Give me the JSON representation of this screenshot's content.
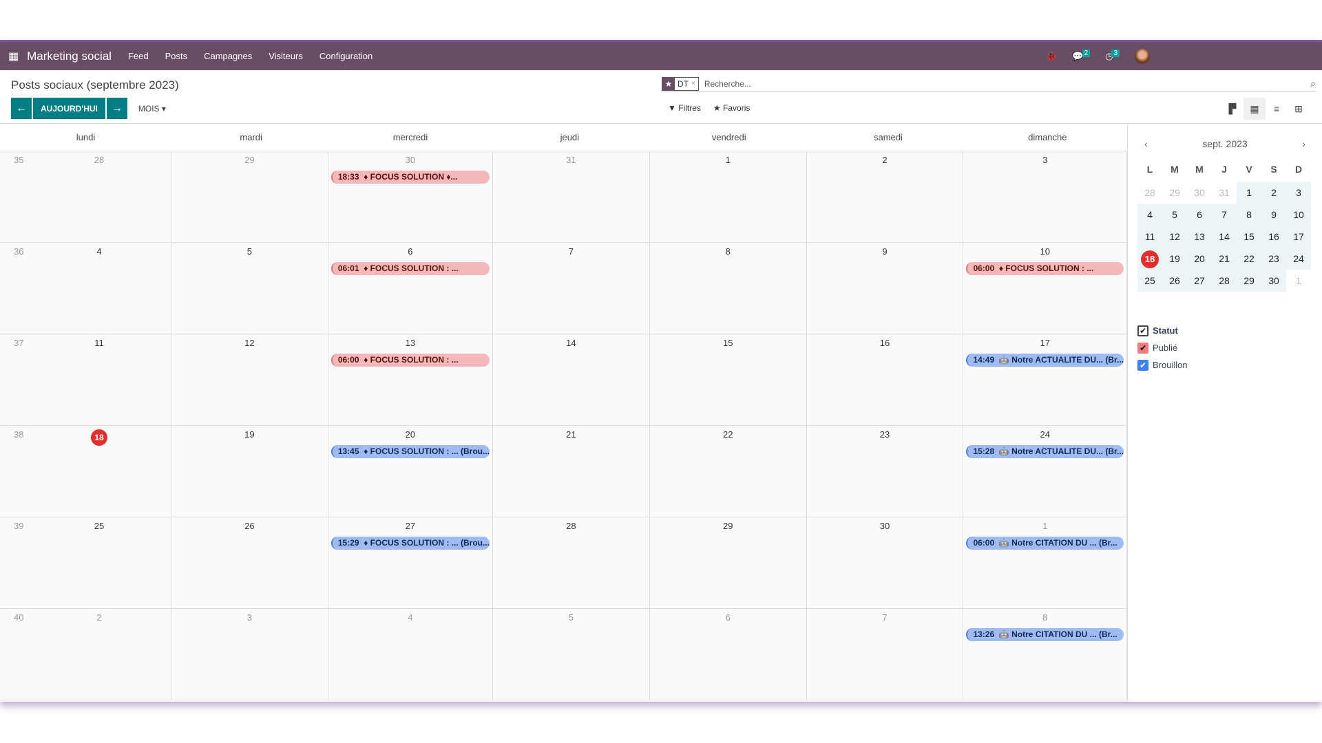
{
  "nav": {
    "app": "Marketing social",
    "menu": [
      "Feed",
      "Posts",
      "Campagnes",
      "Visiteurs",
      "Configuration"
    ],
    "messages_count": "2",
    "activities_count": "3"
  },
  "control": {
    "title": "Posts sociaux (septembre 2023)",
    "today": "AUJOURD'HUI",
    "scale": "MOIS",
    "facet": "DT",
    "search_placeholder": "Recherche...",
    "filters": "Filtres",
    "favorites": "Favoris"
  },
  "calendar": {
    "weekdays": [
      "lundi",
      "mardi",
      "mercredi",
      "jeudi",
      "vendredi",
      "samedi",
      "dimanche"
    ],
    "today": "18",
    "weeks": [
      {
        "num": "35",
        "days": [
          "28",
          "29",
          "30",
          "31",
          "1",
          "2",
          "3"
        ],
        "other": [
          0,
          1,
          2,
          3
        ]
      },
      {
        "num": "36",
        "days": [
          "4",
          "5",
          "6",
          "7",
          "8",
          "9",
          "10"
        ],
        "other": []
      },
      {
        "num": "37",
        "days": [
          "11",
          "12",
          "13",
          "14",
          "15",
          "16",
          "17"
        ],
        "other": []
      },
      {
        "num": "38",
        "days": [
          "18",
          "19",
          "20",
          "21",
          "22",
          "23",
          "24"
        ],
        "other": []
      },
      {
        "num": "39",
        "days": [
          "25",
          "26",
          "27",
          "28",
          "29",
          "30",
          "1"
        ],
        "other": [
          6
        ]
      },
      {
        "num": "40",
        "days": [
          "2",
          "3",
          "4",
          "5",
          "6",
          "7",
          "8"
        ],
        "other": [
          0,
          1,
          2,
          3,
          4,
          5,
          6
        ]
      }
    ],
    "events": [
      {
        "week": 0,
        "day": 2,
        "status": "pub",
        "time": "18:33",
        "icon": "♦",
        "text": "FOCUS SOLUTION ♦..."
      },
      {
        "week": 1,
        "day": 2,
        "status": "pub",
        "time": "06:01",
        "icon": "♦",
        "text": "FOCUS SOLUTION : ..."
      },
      {
        "week": 1,
        "day": 6,
        "status": "pub",
        "time": "06:00",
        "icon": "♦",
        "text": "FOCUS SOLUTION : ..."
      },
      {
        "week": 2,
        "day": 2,
        "status": "pub",
        "time": "06:00",
        "icon": "♦",
        "text": "FOCUS SOLUTION : ..."
      },
      {
        "week": 2,
        "day": 6,
        "status": "dra",
        "time": "14:49",
        "icon": "🤖",
        "text": "Notre ACTUALITE DU... (Br..."
      },
      {
        "week": 3,
        "day": 2,
        "status": "dra",
        "time": "13:45",
        "icon": "♦",
        "text": "FOCUS SOLUTION : ... (Brou..."
      },
      {
        "week": 3,
        "day": 6,
        "status": "dra",
        "time": "15:28",
        "icon": "🤖",
        "text": "Notre ACTUALITE DU... (Br..."
      },
      {
        "week": 4,
        "day": 2,
        "status": "dra",
        "time": "15:29",
        "icon": "♦",
        "text": "FOCUS SOLUTION : ... (Brou..."
      },
      {
        "week": 4,
        "day": 6,
        "status": "dra",
        "time": "06:00",
        "icon": "🤖",
        "text": "Notre CITATION DU ... (Br..."
      },
      {
        "week": 5,
        "day": 6,
        "status": "dra",
        "time": "13:26",
        "icon": "🤖",
        "text": "Notre CITATION DU ... (Br..."
      }
    ],
    "colors": {
      "published": "#f4b8b8",
      "draft": "#9ebcf2",
      "today": "#e42e2e",
      "brand": "#684d63",
      "primary": "#017e84"
    }
  },
  "mini": {
    "title": "sept. 2023",
    "headers": [
      "L",
      "M",
      "M",
      "J",
      "V",
      "S",
      "D"
    ],
    "days": [
      "28",
      "29",
      "30",
      "31",
      "1",
      "2",
      "3",
      "4",
      "5",
      "6",
      "7",
      "8",
      "9",
      "10",
      "11",
      "12",
      "13",
      "14",
      "15",
      "16",
      "17",
      "18",
      "19",
      "20",
      "21",
      "22",
      "23",
      "24",
      "25",
      "26",
      "27",
      "28",
      "29",
      "30",
      "1"
    ],
    "today": "18"
  },
  "filters": {
    "header": "Statut",
    "items": [
      "Publié",
      "Brouillon"
    ]
  }
}
